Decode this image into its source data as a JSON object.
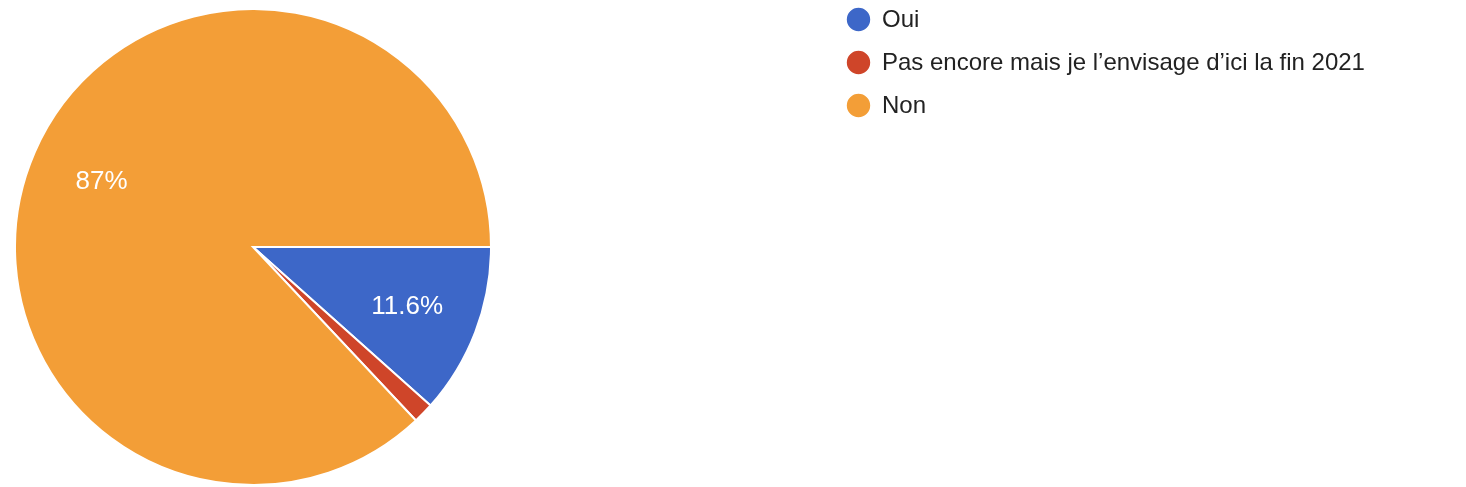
{
  "chart_data": {
    "type": "pie",
    "categories": [
      "Oui",
      "Pas encore mais je l’envisage d’ici la fin 2021",
      "Non"
    ],
    "values": [
      11.6,
      1.4,
      87
    ],
    "colors": [
      "#3d67c8",
      "#cf4529",
      "#f39e37"
    ],
    "value_labels": [
      "11.6%",
      null,
      "87%"
    ],
    "legend": "right"
  }
}
